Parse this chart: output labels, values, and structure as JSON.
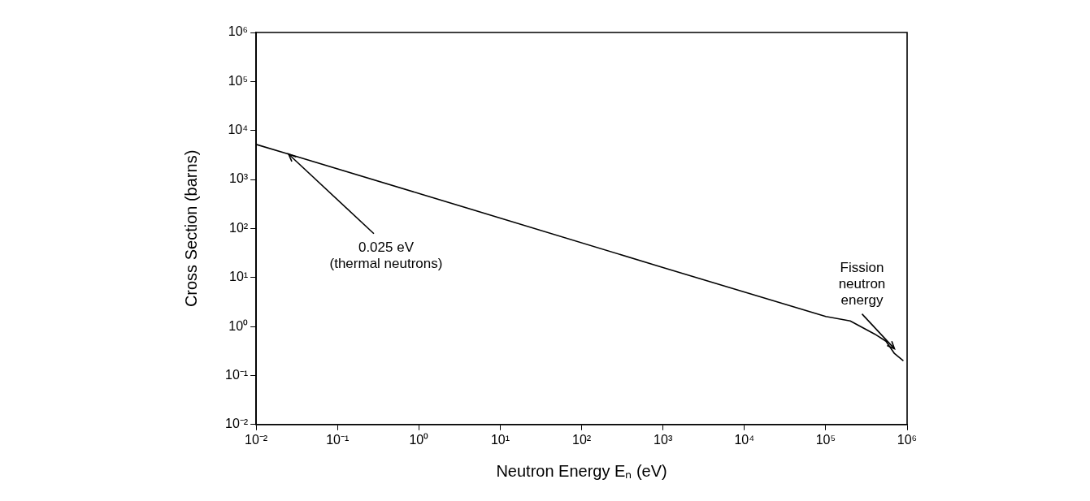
{
  "chart_data": {
    "type": "line",
    "xlabel": "Neutron Energy Eₙ (eV)",
    "ylabel": "Cross Section (barns)",
    "x": [
      0.01,
      0.025,
      1,
      1000,
      100000,
      200000,
      400000,
      550000,
      700000,
      900000
    ],
    "series": [
      {
        "color": "#000000",
        "values": [
          5200,
          3300,
          520,
          16,
          1.6,
          1.3,
          0.7,
          0.5,
          0.28,
          0.2
        ]
      }
    ],
    "log": "xy",
    "xlim": [
      0.01,
      1000000
    ],
    "ylim": [
      0.01,
      1000000
    ],
    "xticks": [
      {
        "value": 0.01,
        "label": "10⁻²"
      },
      {
        "value": 0.1,
        "label": "10⁻¹"
      },
      {
        "value": 1,
        "label": "10⁰"
      },
      {
        "value": 10,
        "label": "10¹"
      },
      {
        "value": 100,
        "label": "10²"
      },
      {
        "value": 1000,
        "label": "10³"
      },
      {
        "value": 10000,
        "label": "10⁴"
      },
      {
        "value": 100000,
        "label": "10⁵"
      },
      {
        "value": 1000000,
        "label": "10⁶"
      }
    ],
    "yticks": [
      {
        "value": 0.01,
        "label": "10⁻²"
      },
      {
        "value": 0.1,
        "label": "10⁻¹"
      },
      {
        "value": 1,
        "label": "10⁰"
      },
      {
        "value": 10,
        "label": "10¹"
      },
      {
        "value": 100,
        "label": "10²"
      },
      {
        "value": 1000,
        "label": "10³"
      },
      {
        "value": 10000,
        "label": "10⁴"
      },
      {
        "value": 100000,
        "label": "10⁵"
      },
      {
        "value": 1000000,
        "label": "10⁶"
      }
    ],
    "grid": false,
    "legend": false,
    "marker": "none",
    "line_style": "solid",
    "annotations": [
      {
        "text": "0.025 eV\n(thermal neutrons)",
        "x": 0.025,
        "y": 3300
      },
      {
        "text": "Fission\nneutron\nenergy",
        "x": 700000,
        "y": 0.35
      }
    ]
  }
}
